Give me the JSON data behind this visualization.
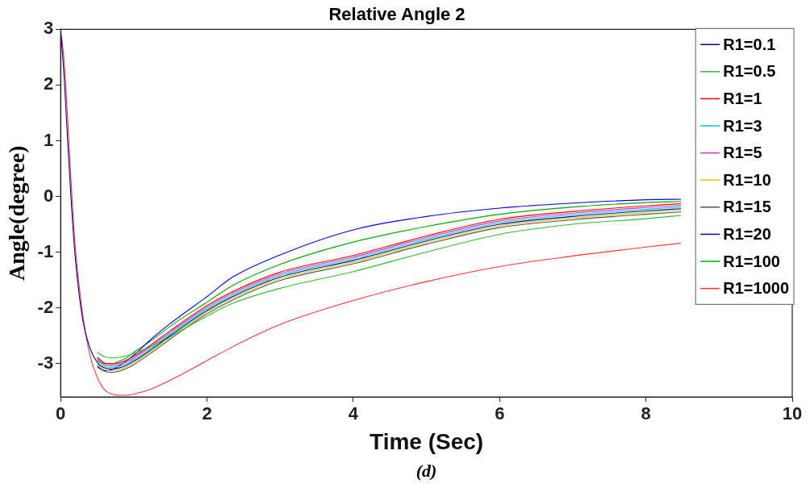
{
  "chart_data": {
    "type": "line",
    "title": "Relative Angle 2",
    "xlabel": "Time (Sec)",
    "ylabel": "Angle(degree)",
    "annotations": [
      "(d)"
    ],
    "x": [
      0,
      0.05,
      0.1,
      0.15,
      0.2,
      0.3,
      0.4,
      0.5,
      0.6,
      0.7,
      0.8,
      0.9,
      1,
      1.25,
      1.5,
      2,
      2.35,
      3,
      4,
      5,
      6,
      7,
      8,
      8.48
    ],
    "xlim": [
      0,
      10
    ],
    "xticks": [
      0,
      2,
      4,
      6,
      8,
      10
    ],
    "ylim": [
      -3.6,
      3
    ],
    "yticks": [
      -3,
      -2,
      -1,
      0,
      1,
      2,
      3
    ],
    "grid": false,
    "legend": "top right",
    "marker": "none",
    "line_style": "solid",
    "series": [
      {
        "name": "R1=0.1",
        "color": "#0000aa",
        "values": [
          3,
          2.1,
          0.9,
          -0.2,
          -1.1,
          -2.2,
          -2.72,
          -2.98,
          -3.08,
          -3.1,
          -3.08,
          -3.03,
          -2.96,
          -2.74,
          -2.5,
          -2.05,
          -1.8,
          -1.45,
          -1.15,
          -0.8,
          -0.5,
          -0.36,
          -0.26,
          -0.22
        ]
      },
      {
        "name": "R1=0.5",
        "color": "#33bb33",
        "values": [
          null,
          null,
          null,
          null,
          null,
          null,
          null,
          -2.8,
          -2.88,
          -2.9,
          -2.89,
          -2.86,
          -2.82,
          -2.68,
          -2.52,
          -2.15,
          -1.92,
          -1.65,
          -1.35,
          -1,
          -0.68,
          -0.5,
          -0.4,
          -0.34
        ]
      },
      {
        "name": "R1=1",
        "color": "#ff0000",
        "values": [
          null,
          null,
          null,
          null,
          null,
          null,
          null,
          -2.89,
          -2.99,
          -3.01,
          -2.99,
          -2.94,
          -2.87,
          -2.65,
          -2.41,
          -1.96,
          -1.71,
          -1.36,
          -1.06,
          -0.71,
          -0.41,
          -0.27,
          -0.17,
          -0.13
        ]
      },
      {
        "name": "R1=3",
        "color": "#00cccc",
        "values": [
          null,
          null,
          null,
          null,
          null,
          null,
          null,
          -2.95,
          -3.05,
          -3.07,
          -3.05,
          -3,
          -2.93,
          -2.71,
          -2.47,
          -2.02,
          -1.77,
          -1.42,
          -1.12,
          -0.77,
          -0.47,
          -0.33,
          -0.23,
          -0.19
        ]
      },
      {
        "name": "R1=5",
        "color": "#cc33cc",
        "values": [
          null,
          null,
          null,
          null,
          null,
          null,
          null,
          -2.92,
          -3.02,
          -3.04,
          -3.02,
          -2.97,
          -2.9,
          -2.68,
          -2.44,
          -1.99,
          -1.74,
          -1.39,
          -1.09,
          -0.74,
          -0.44,
          -0.3,
          -0.2,
          -0.16
        ]
      },
      {
        "name": "R1=10",
        "color": "#cccc00",
        "values": [
          null,
          null,
          null,
          null,
          null,
          null,
          null,
          -3.01,
          -3.11,
          -3.13,
          -3.11,
          -3.06,
          -2.99,
          -2.77,
          -2.53,
          -2.08,
          -1.83,
          -1.48,
          -1.18,
          -0.83,
          -0.53,
          -0.39,
          -0.29,
          -0.25
        ]
      },
      {
        "name": "R1=15",
        "color": "#555555",
        "values": [
          null,
          null,
          null,
          null,
          null,
          null,
          null,
          -3.04,
          -3.14,
          -3.16,
          -3.14,
          -3.09,
          -3.02,
          -2.8,
          -2.56,
          -2.11,
          -1.86,
          -1.51,
          -1.21,
          -0.86,
          -0.56,
          -0.42,
          -0.32,
          -0.28
        ]
      },
      {
        "name": "R1=20",
        "color": "#0000ff",
        "values": [
          null,
          null,
          null,
          null,
          null,
          null,
          null,
          -3.06,
          -3.13,
          -3.11,
          -3.04,
          -2.95,
          -2.85,
          -2.55,
          -2.28,
          -1.8,
          -1.45,
          -1.05,
          -0.6,
          -0.36,
          -0.21,
          -0.12,
          -0.06,
          -0.05
        ]
      },
      {
        "name": "R1=100",
        "color": "#00aa00",
        "values": [
          null,
          null,
          null,
          null,
          null,
          null,
          null,
          -2.95,
          -3,
          -3,
          -2.96,
          -2.9,
          -2.8,
          -2.58,
          -2.33,
          -1.9,
          -1.6,
          -1.22,
          -0.82,
          -0.54,
          -0.32,
          -0.19,
          -0.11,
          -0.09
        ]
      },
      {
        "name": "R1=1000",
        "color": "#ff3333",
        "values": [
          3,
          2.4,
          1.3,
          0.1,
          -0.9,
          -2.1,
          -2.85,
          -3.25,
          -3.47,
          -3.55,
          -3.57,
          -3.57,
          -3.55,
          -3.45,
          -3.3,
          -2.95,
          -2.7,
          -2.3,
          -1.87,
          -1.53,
          -1.26,
          -1.07,
          -0.91,
          -0.84
        ]
      }
    ]
  }
}
